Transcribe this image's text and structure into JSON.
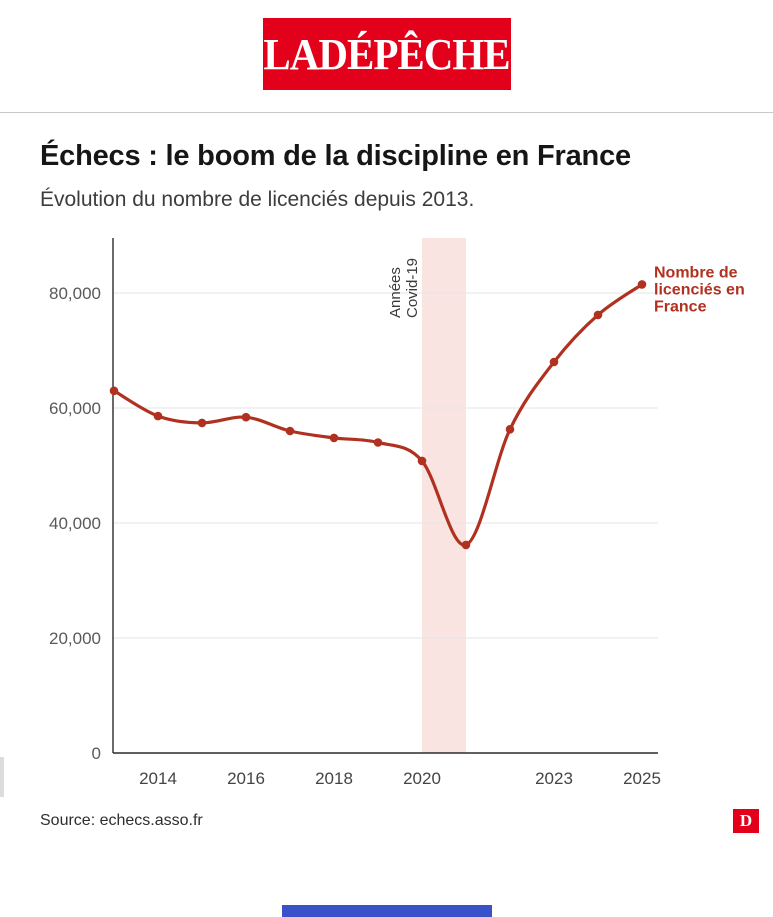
{
  "header": {
    "logo_text": "LA DÉPÊCHE"
  },
  "article": {
    "title": "Échecs : le boom de la discipline en France",
    "subtitle": "Évolution du nombre de licenciés depuis 2013."
  },
  "chart_data": {
    "type": "line",
    "title": "Échecs : le boom de la discipline en France",
    "xlabel": "",
    "ylabel": "",
    "x": [
      2013,
      2014,
      2015,
      2016,
      2017,
      2018,
      2019,
      2020,
      2021,
      2022,
      2023,
      2024,
      2025
    ],
    "series": [
      {
        "name": "Nombre de licenciés en France",
        "values": [
          63000,
          58600,
          57400,
          58400,
          56000,
          54800,
          54000,
          50800,
          36200,
          56300,
          68000,
          76200,
          81500
        ]
      }
    ],
    "ylim": [
      0,
      90000
    ],
    "y_ticks": [
      0,
      20000,
      40000,
      60000,
      80000
    ],
    "y_tick_labels": [
      "0",
      "20,000",
      "40,000",
      "60,000",
      "80,000"
    ],
    "x_ticks": [
      2014,
      2016,
      2018,
      2020,
      2023,
      2025
    ],
    "grid": true,
    "legend_position": "right-of-last-point",
    "band": {
      "from": 2020,
      "to": 2021,
      "color": "#f9e4e2",
      "label_lines": [
        "Années",
        "Covid-19"
      ]
    },
    "series_label_lines": [
      "Nombre de",
      "licenciés en",
      "France"
    ],
    "line_color": "#b13120"
  },
  "footer": {
    "source": "Source: echecs.asso.fr",
    "logo_letter": "D"
  },
  "colors": {
    "brand_red": "#e3001b",
    "line_red": "#b13120",
    "band_pink": "#f9e4e2",
    "bottom_bar_blue": "#3a52c9"
  }
}
